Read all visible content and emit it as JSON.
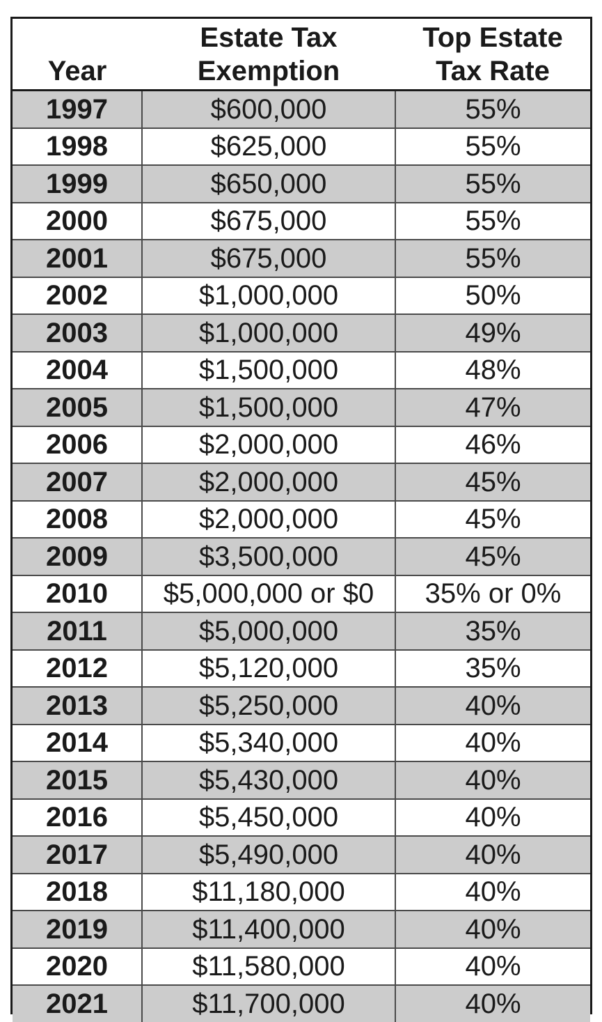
{
  "table": {
    "headers": {
      "year": "Year",
      "exemption_line1": "Estate Tax",
      "exemption_line2": "Exemption",
      "rate_line1": "Top Estate",
      "rate_line2": "Tax Rate"
    },
    "rows": [
      {
        "year": "1997",
        "exemption": "$600,000",
        "rate": "55%"
      },
      {
        "year": "1998",
        "exemption": "$625,000",
        "rate": "55%"
      },
      {
        "year": "1999",
        "exemption": "$650,000",
        "rate": "55%"
      },
      {
        "year": "2000",
        "exemption": "$675,000",
        "rate": "55%"
      },
      {
        "year": "2001",
        "exemption": "$675,000",
        "rate": "55%"
      },
      {
        "year": "2002",
        "exemption": "$1,000,000",
        "rate": "50%"
      },
      {
        "year": "2003",
        "exemption": "$1,000,000",
        "rate": "49%"
      },
      {
        "year": "2004",
        "exemption": "$1,500,000",
        "rate": "48%"
      },
      {
        "year": "2005",
        "exemption": "$1,500,000",
        "rate": "47%"
      },
      {
        "year": "2006",
        "exemption": "$2,000,000",
        "rate": "46%"
      },
      {
        "year": "2007",
        "exemption": "$2,000,000",
        "rate": "45%"
      },
      {
        "year": "2008",
        "exemption": "$2,000,000",
        "rate": "45%"
      },
      {
        "year": "2009",
        "exemption": "$3,500,000",
        "rate": "45%"
      },
      {
        "year": "2010",
        "exemption": "$5,000,000 or $0",
        "rate": "35% or 0%"
      },
      {
        "year": "2011",
        "exemption": "$5,000,000",
        "rate": "35%"
      },
      {
        "year": "2012",
        "exemption": "$5,120,000",
        "rate": "35%"
      },
      {
        "year": "2013",
        "exemption": "$5,250,000",
        "rate": "40%"
      },
      {
        "year": "2014",
        "exemption": "$5,340,000",
        "rate": "40%"
      },
      {
        "year": "2015",
        "exemption": "$5,430,000",
        "rate": "40%"
      },
      {
        "year": "2016",
        "exemption": "$5,450,000",
        "rate": "40%"
      },
      {
        "year": "2017",
        "exemption": "$5,490,000",
        "rate": "40%"
      },
      {
        "year": "2018",
        "exemption": "$11,180,000",
        "rate": "40%"
      },
      {
        "year": "2019",
        "exemption": "$11,400,000",
        "rate": "40%"
      },
      {
        "year": "2020",
        "exemption": "$11,580,000",
        "rate": "40%"
      },
      {
        "year": "2021",
        "exemption": "$11,700,000",
        "rate": "40%"
      }
    ]
  },
  "colors": {
    "shaded_row": "#cccccc",
    "plain_row": "#ffffff",
    "border": "#1a1a1a"
  }
}
